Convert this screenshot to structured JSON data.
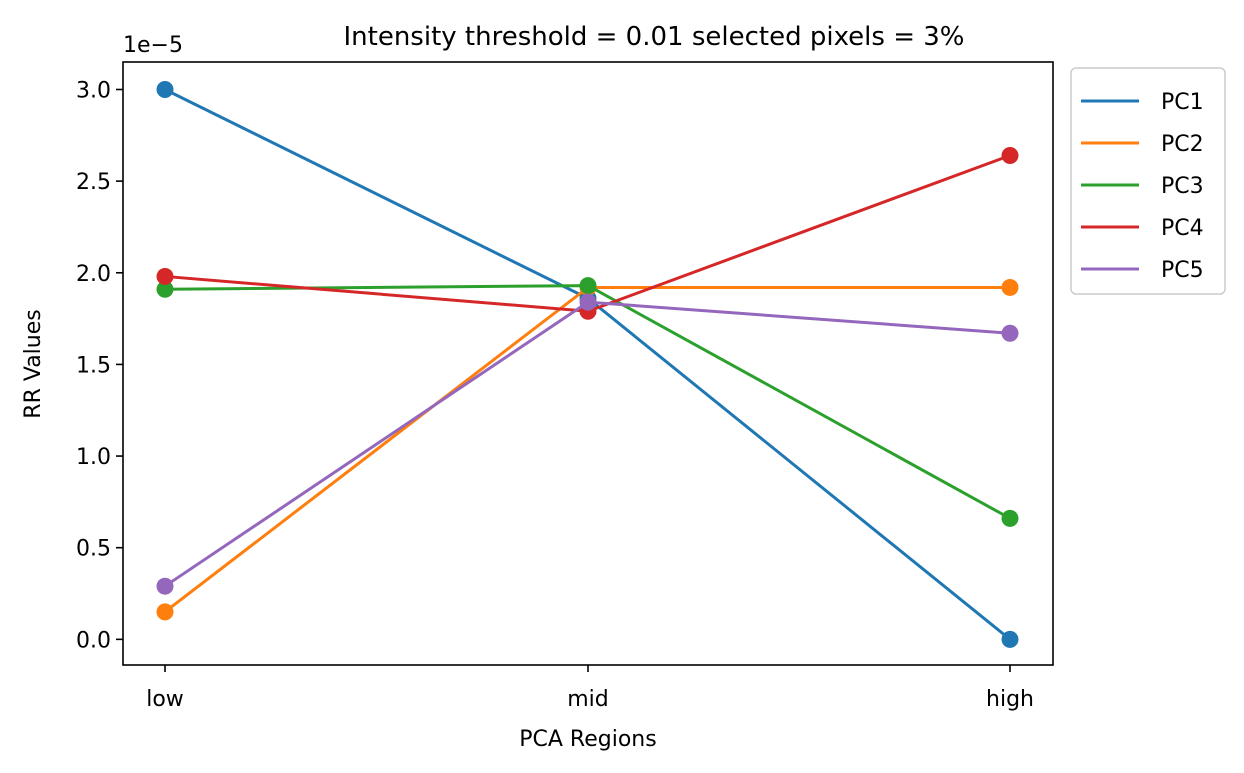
{
  "chart_data": {
    "type": "line",
    "title": "Intensity threshold = 0.01 selected pixels = 3%",
    "xlabel": "PCA Regions",
    "ylabel": "RR Values",
    "y_offset_label": "1e−5",
    "categories": [
      "low",
      "mid",
      "high"
    ],
    "ylim": [
      -0.14,
      3.15
    ],
    "yticks": [
      0.0,
      0.5,
      1.0,
      1.5,
      2.0,
      2.5,
      3.0
    ],
    "ytick_labels": [
      "0.0",
      "0.5",
      "1.0",
      "1.5",
      "2.0",
      "2.5",
      "3.0"
    ],
    "y_scale_note": "values in units of 1e-5",
    "grid": false,
    "legend_position": "outside upper right",
    "markers": true,
    "series": [
      {
        "name": "PC1",
        "color": "#1f77b4",
        "values": [
          3.0,
          1.86,
          0.0
        ]
      },
      {
        "name": "PC2",
        "color": "#ff7f0e",
        "values": [
          0.15,
          1.92,
          1.92
        ]
      },
      {
        "name": "PC3",
        "color": "#2ca02c",
        "values": [
          1.91,
          1.93,
          0.66
        ]
      },
      {
        "name": "PC4",
        "color": "#d62728",
        "values": [
          1.98,
          1.79,
          2.64
        ]
      },
      {
        "name": "PC5",
        "color": "#9467bd",
        "values": [
          0.29,
          1.84,
          1.67
        ]
      }
    ]
  }
}
